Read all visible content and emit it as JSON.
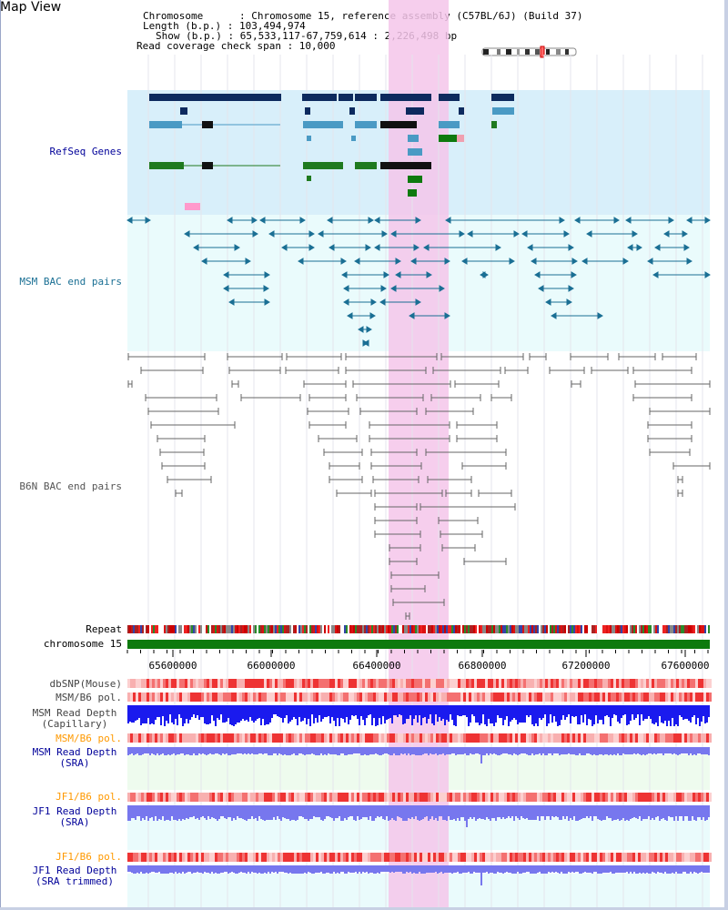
{
  "title": "Map View",
  "info": {
    "chromosome": "Chromosome      : Chromosome 15, reference assembly (C57BL/6J) (Build 37)",
    "length": "Length (b.p.) : 103,494,974",
    "show": "Show (b.p.) : 65,533,117-67,759,614 : 2,226,498 bp",
    "span": "Read coverage check span : 10,000"
  },
  "tracks": {
    "refseq": "RefSeq Genes",
    "msm_bac": "MSM BAC end pairs",
    "b6n_bac": "B6N BAC end pairs",
    "repeat": "Repeat",
    "chromosome": "chromosome 15",
    "dbsnp": "dbSNP(Mouse)",
    "msm_b6_pol_1": "MSM/B6 pol.",
    "msm_read_depth_cap": "MSM Read Depth\n(Capillary)",
    "msm_b6_pol_2": "MSM/B6 pol.",
    "msm_read_depth_sra": "MSM Read Depth\n(SRA)",
    "jf1_b6_pol_1": "JF1/B6 pol.",
    "jf1_read_depth_sra": "JF1 Read Depth\n(SRA)",
    "jf1_b6_pol_2": "JF1/B6 pol.",
    "jf1_read_depth_trimmed": "JF1 Read Depth\n(SRA trimmed)"
  },
  "axis": {
    "ticks": [
      "65600000",
      "66000000",
      "66400000",
      "66800000",
      "67200000",
      "67600000"
    ],
    "range": [
      65533117,
      67759614
    ]
  },
  "highlight_region": [
    66420000,
    66650000
  ],
  "colors": {
    "refseq_bg": "#d8effa",
    "bac_bg": "#eafbfc",
    "highlight": "#f5c6ea",
    "gene_dark": "#0d2a5e",
    "gene_mid": "#4a9ac4",
    "gene_green": "#1f7a1f",
    "bac_msm": "#1a6f94",
    "bac_b6n": "#666666",
    "chromosome_bar": "#0e7a0e",
    "label_blue": "#000099",
    "label_orange": "#ff9900",
    "label_gray": "#444444",
    "depth_capillary": "#1a1aee",
    "depth_sra": "#7777ee"
  }
}
